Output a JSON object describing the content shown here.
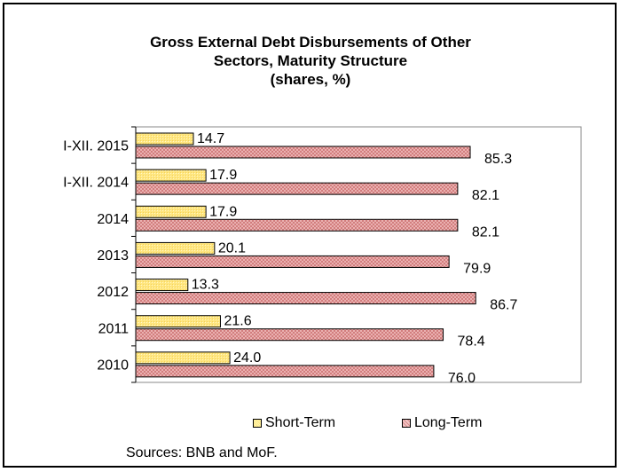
{
  "chart_data": {
    "type": "bar",
    "orientation": "horizontal",
    "title_lines": [
      "Gross External Debt Disbursements of Other",
      "Sectors, Maturity Structure",
      "(shares, %)"
    ],
    "categories": [
      "I-XII. 2015",
      "I-XII. 2014",
      "2014",
      "2013",
      "2012",
      "2011",
      "2010"
    ],
    "series": [
      {
        "name": "Short-Term",
        "values": [
          14.7,
          17.9,
          17.9,
          20.1,
          13.3,
          21.6,
          24.0
        ],
        "labels": [
          "14.7",
          "17.9",
          "17.9",
          "20.1",
          "13.3",
          "21.6",
          "24.0"
        ],
        "color": "#ffe680"
      },
      {
        "name": "Long-Term",
        "values": [
          85.3,
          82.1,
          82.1,
          79.9,
          86.7,
          78.4,
          76.0
        ],
        "labels": [
          "85.3",
          "82.1",
          "82.1",
          "79.9",
          "86.7",
          "78.4",
          "76.0"
        ],
        "color": "#e8a3a3"
      }
    ],
    "xlim": [
      0,
      100
    ],
    "grid": false,
    "legend_position": "bottom",
    "source_note": "Sources: BNB and MoF."
  }
}
